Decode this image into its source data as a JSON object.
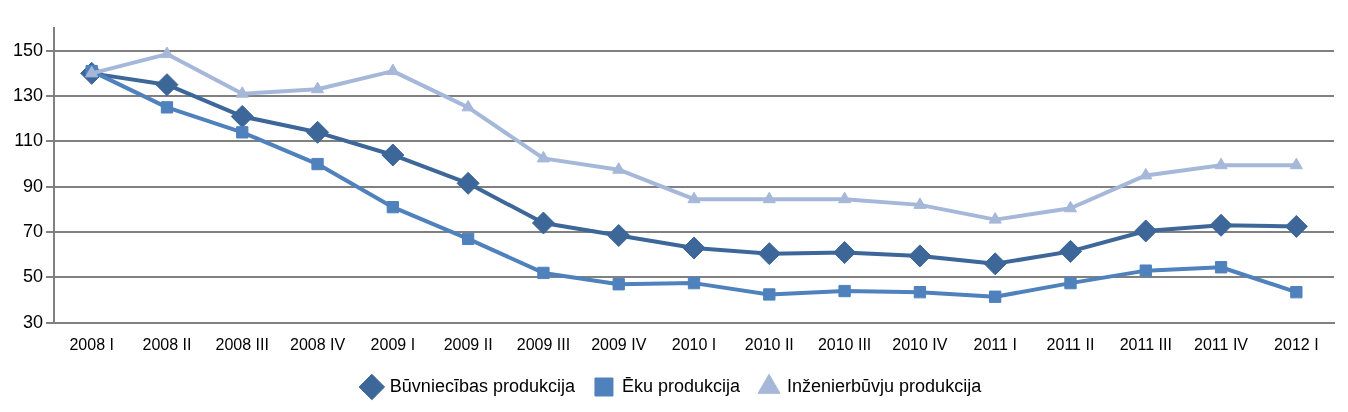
{
  "chart_data": {
    "type": "line",
    "categories": [
      "2008 I",
      "2008 II",
      "2008 III",
      "2008 IV",
      "2009 I",
      "2009 II",
      "2009 III",
      "2009 IV",
      "2010 I",
      "2010 II",
      "2010 III",
      "2010 IV",
      "2011 I",
      "2011 II",
      "2011 III",
      "2011 IV",
      "2012 I"
    ],
    "series": [
      {
        "name": "Būvniecības produkcija",
        "color": "#3d6699",
        "marker": "diamond",
        "values": [
          140,
          135,
          121,
          114,
          104,
          91.5,
          74,
          68.5,
          63,
          60.5,
          61,
          59.5,
          56,
          61.5,
          70.5,
          73,
          72.5
        ]
      },
      {
        "name": "Ēku produkcija",
        "color": "#4f81bd",
        "marker": "square",
        "values": [
          141,
          125,
          114,
          100,
          81,
          67,
          52,
          47,
          47.5,
          42.5,
          44,
          43.5,
          41.5,
          47.5,
          53,
          54.5,
          43.5
        ]
      },
      {
        "name": "Inženierbūvju produkcija",
        "color": "#a6b8d9",
        "marker": "triangle",
        "values": [
          140,
          148.5,
          131,
          133,
          141,
          125,
          102.5,
          97.5,
          84.5,
          84.5,
          84.5,
          82,
          75.5,
          80.5,
          95,
          99.5,
          99.5
        ]
      }
    ],
    "ylim": [
      30,
      160
    ],
    "yticks": [
      30,
      50,
      70,
      90,
      110,
      130,
      150
    ],
    "grid": "y",
    "legend": "bottom",
    "line_style": "solid"
  }
}
